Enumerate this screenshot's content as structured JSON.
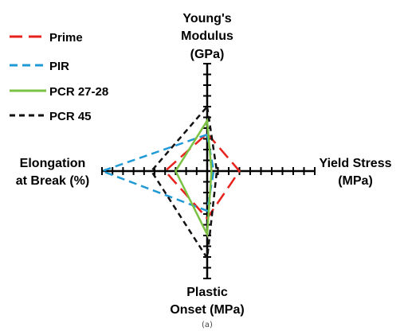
{
  "chart_data": {
    "type": "radar",
    "axes": [
      {
        "key": "up",
        "label_lines": [
          "Young's",
          "Modulus",
          "(GPa)"
        ]
      },
      {
        "key": "right",
        "label_lines": [
          "Yield Stress",
          "(MPa)"
        ]
      },
      {
        "key": "down",
        "label_lines": [
          "Plastic",
          "Onset (MPa)"
        ]
      },
      {
        "key": "left",
        "label_lines": [
          "Elongation",
          "at Break (%)"
        ]
      }
    ],
    "scale_max": 10,
    "ticks_per_axis": 10,
    "series": [
      {
        "name": "Prime",
        "color": "#e8211d",
        "dash": "long-dash",
        "values": {
          "up": 3.5,
          "right": 3.0,
          "down": 4.4,
          "left": 4.0
        }
      },
      {
        "name": "PIR",
        "color": "#1f9ad6",
        "dash": "dash",
        "values": {
          "up": 3.4,
          "right": 0.6,
          "down": 3.7,
          "left": 10.0
        }
      },
      {
        "name": "PCR 27-28",
        "color": "#7cc242",
        "dash": "solid",
        "values": {
          "up": 4.7,
          "right": 0.4,
          "down": 5.9,
          "left": 3.0
        }
      },
      {
        "name": "PCR 45",
        "color": "#111111",
        "dash": "short-dash",
        "values": {
          "up": 6.0,
          "right": 0.9,
          "down": 8.1,
          "left": 5.3
        }
      }
    ],
    "caption": "(a)"
  }
}
